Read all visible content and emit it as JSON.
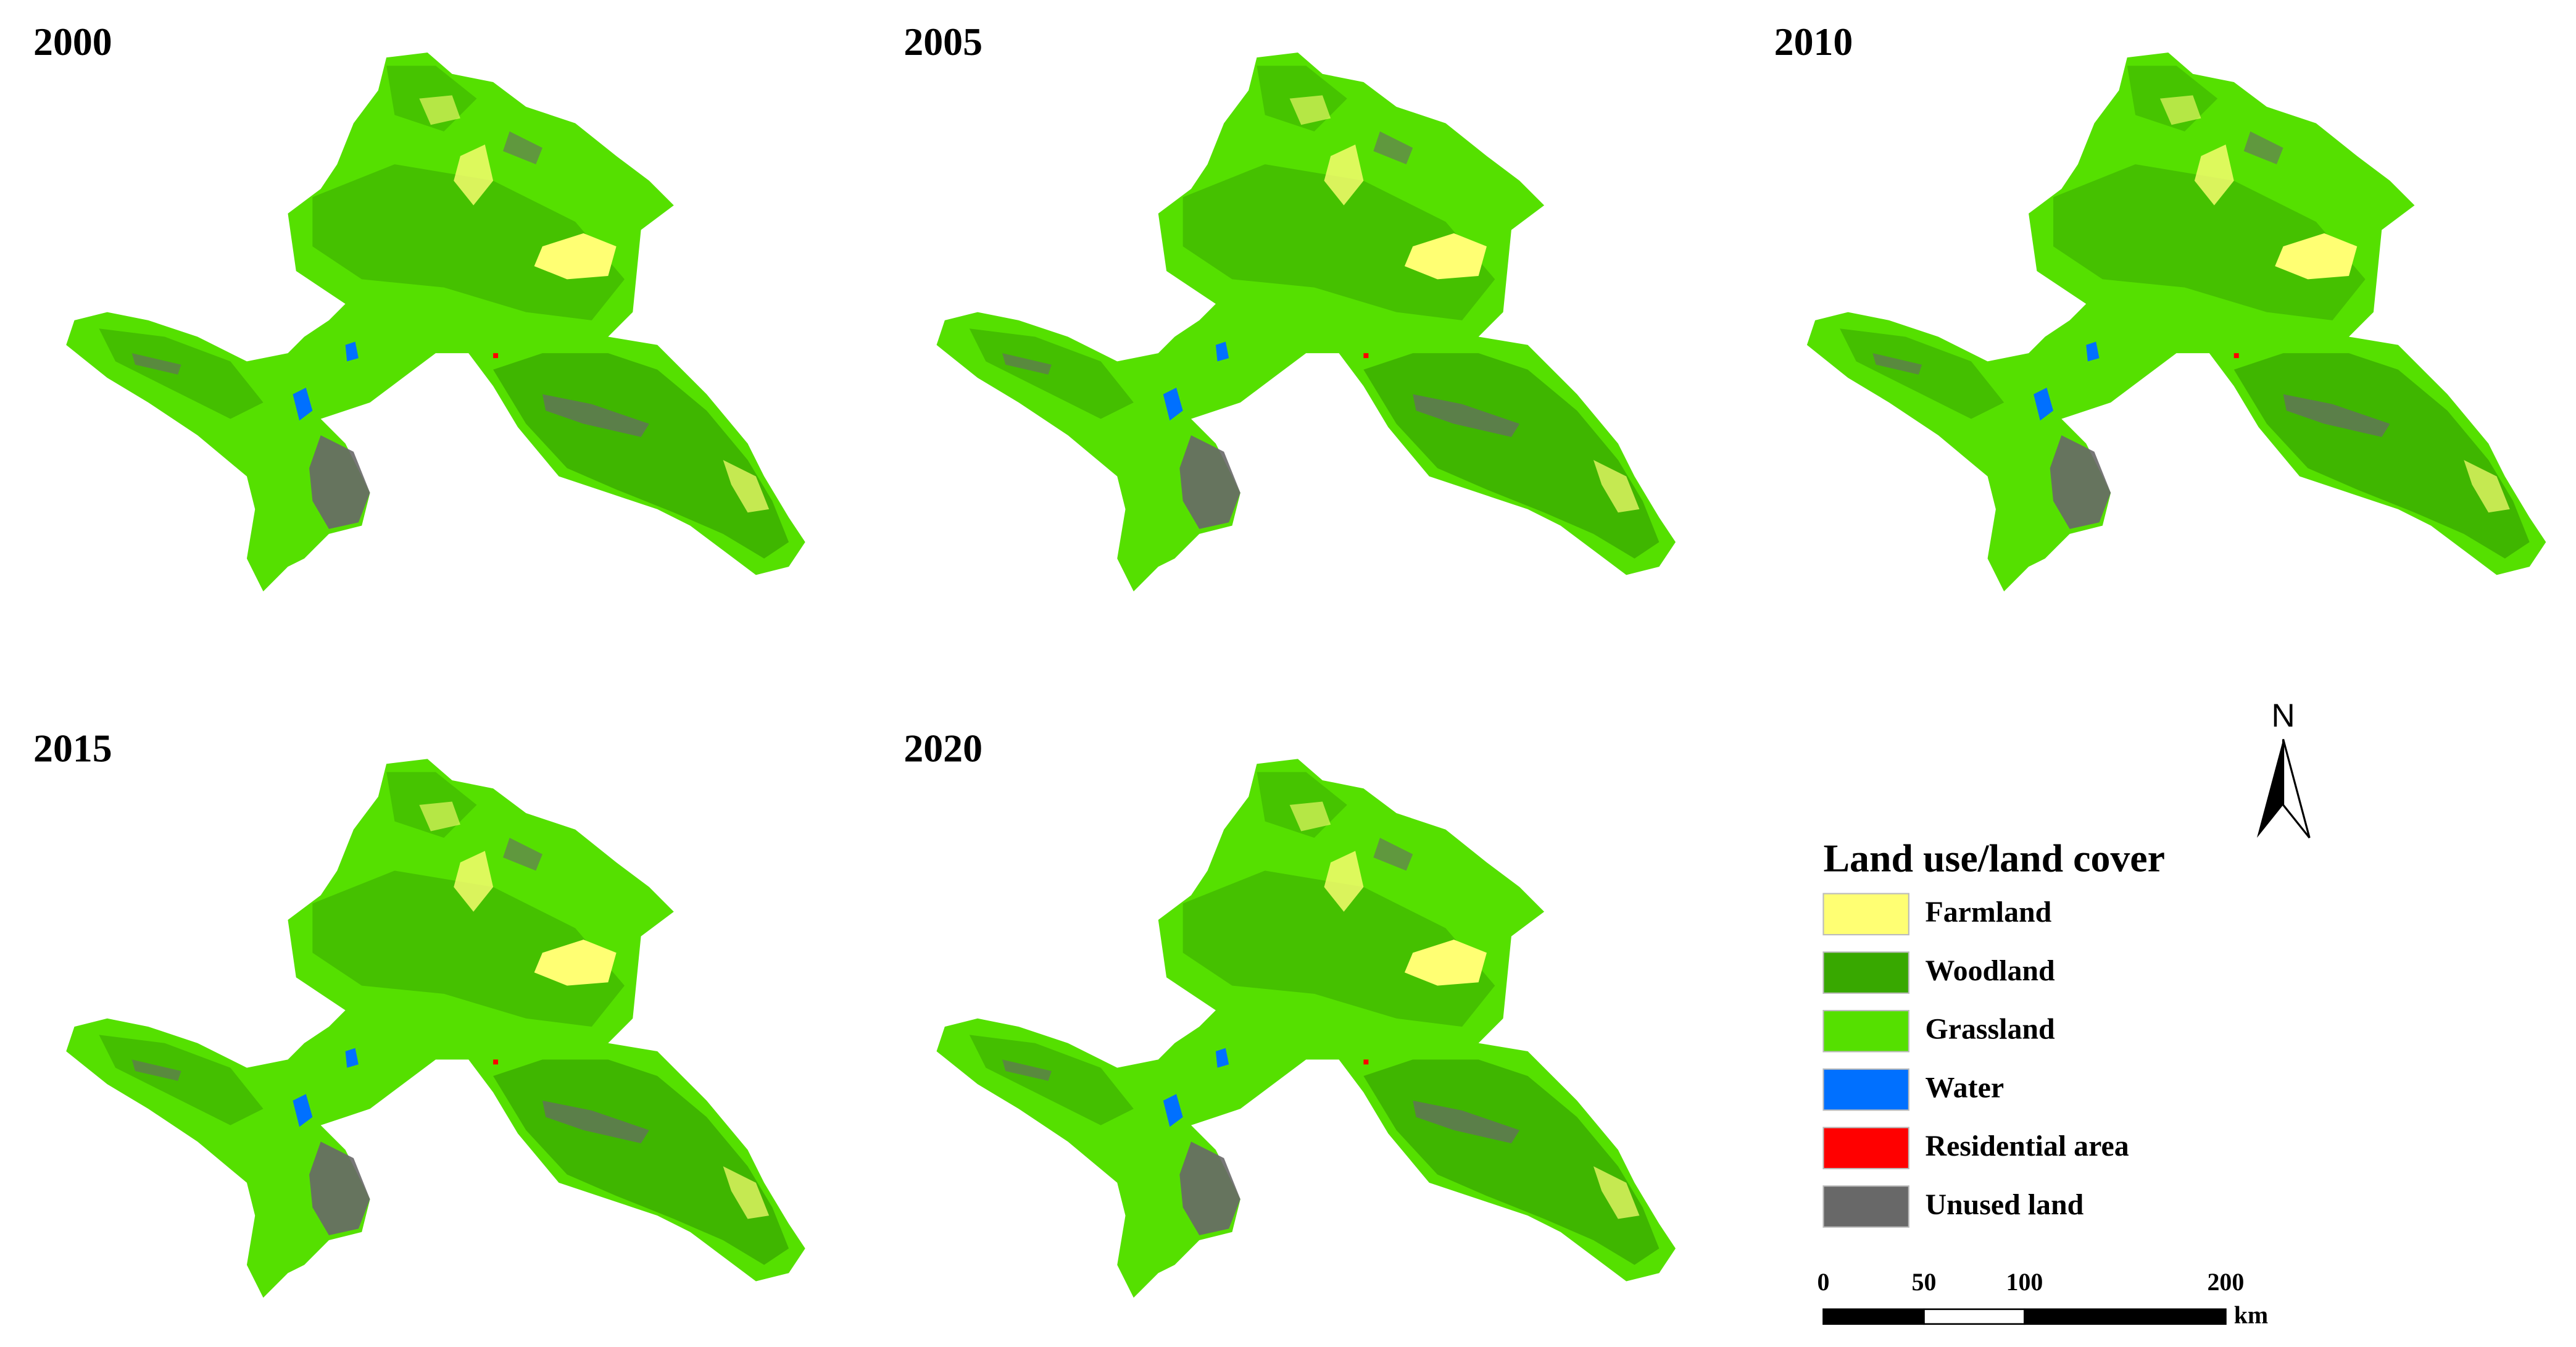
{
  "maps": [
    {
      "year": "2000"
    },
    {
      "year": "2005"
    },
    {
      "year": "2010"
    },
    {
      "year": "2015"
    },
    {
      "year": "2020"
    }
  ],
  "legend": {
    "title": "Land use/land cover",
    "items": [
      {
        "label": "Farmland",
        "color": "#ffff73"
      },
      {
        "label": "Woodland",
        "color": "#38a800"
      },
      {
        "label": "Grassland",
        "color": "#55e000"
      },
      {
        "label": "Water",
        "color": "#0070ff"
      },
      {
        "label": "Residential area",
        "color": "#ff0000"
      },
      {
        "label": "Unused land",
        "color": "#686868"
      }
    ]
  },
  "north_arrow": {
    "label": "N"
  },
  "scale_bar": {
    "ticks": [
      0,
      50,
      100,
      200
    ],
    "unit": "km"
  }
}
